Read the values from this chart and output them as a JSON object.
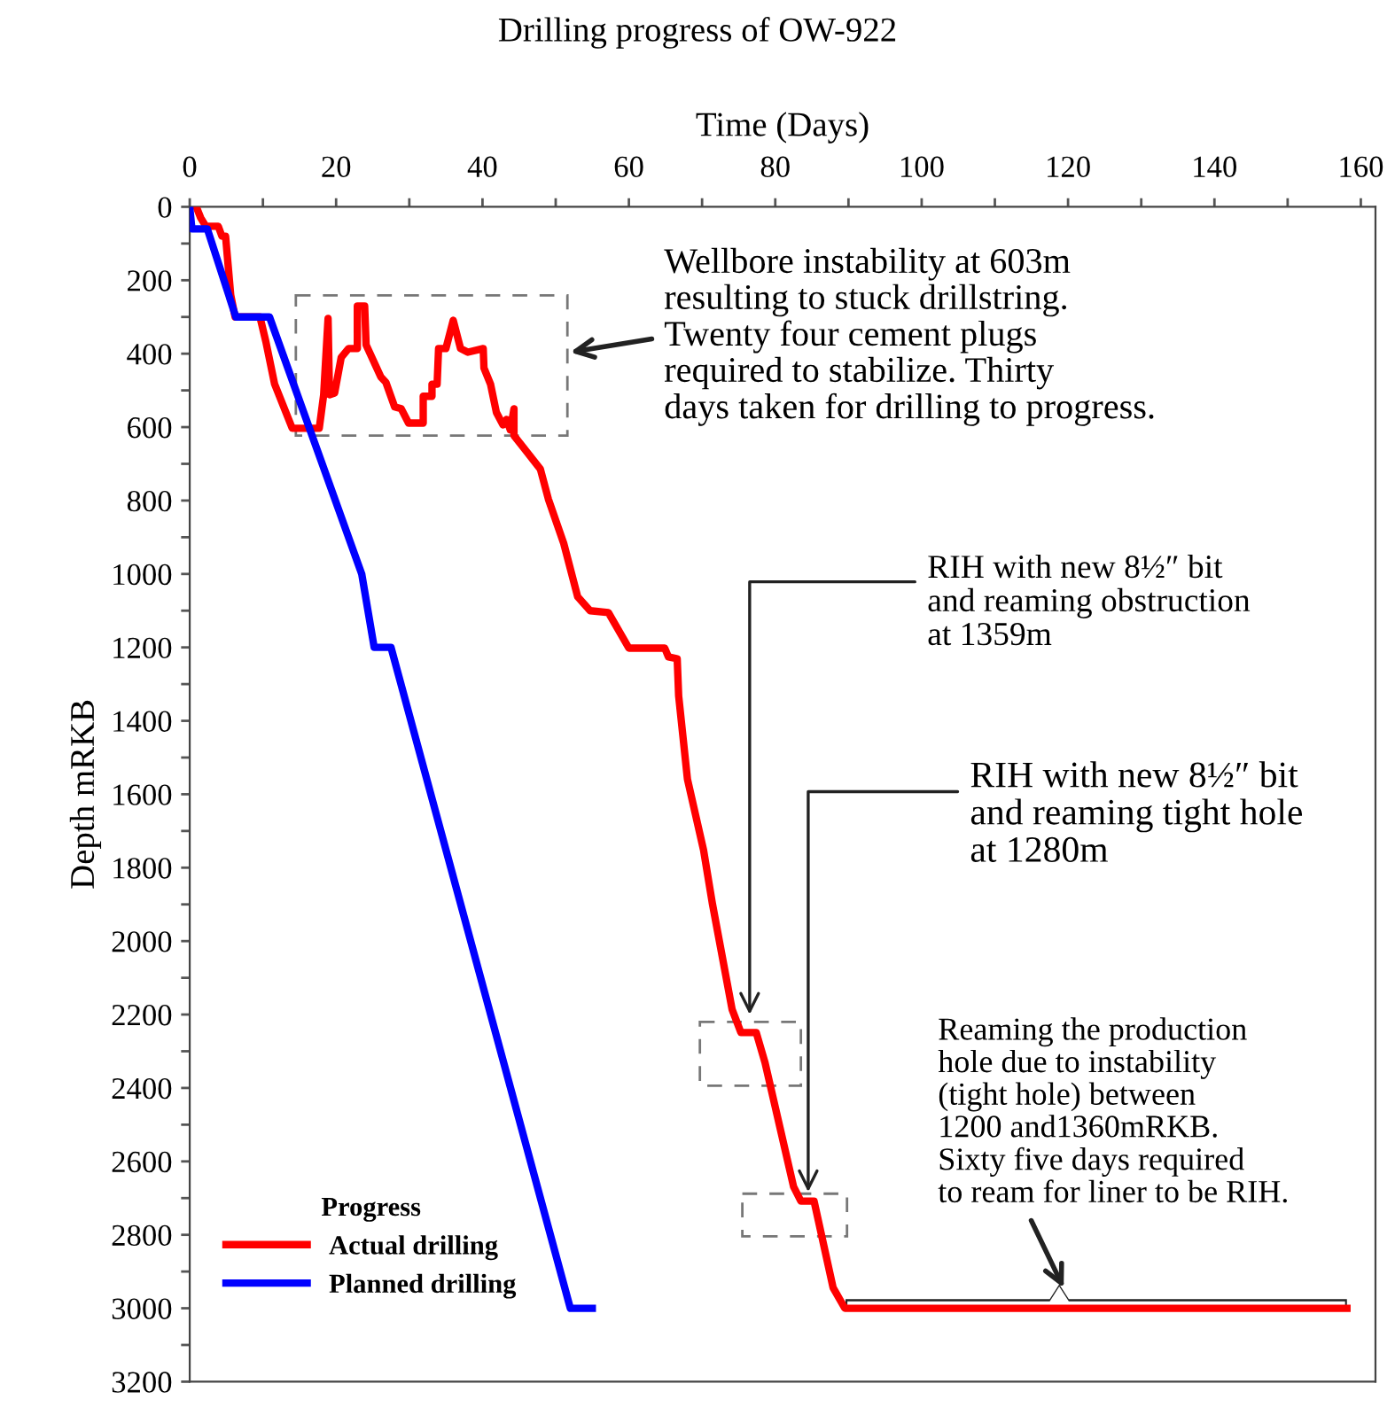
{
  "chart_data": {
    "type": "line",
    "title": "Drilling progress of OW-922",
    "xlabel": "Time (Days)",
    "ylabel": "Depth mRKB",
    "legend_title": "Progress",
    "legend": "bottom left",
    "grid": false,
    "line_style": "solid",
    "marker": "none",
    "xlim": [
      0,
      162
    ],
    "ylim": [
      3200,
      0
    ],
    "xticks": [
      0,
      {
        "value": 10,
        "label": null
      },
      20,
      {
        "value": 30,
        "label": null
      },
      40,
      {
        "value": 50,
        "label": null
      },
      60,
      {
        "value": 70,
        "label": null
      },
      80,
      {
        "value": 90,
        "label": null
      },
      100,
      {
        "value": 110,
        "label": null
      },
      120,
      {
        "value": 130,
        "label": null
      },
      140,
      {
        "value": 150,
        "label": null
      },
      160
    ],
    "yticks": [
      0,
      {
        "value": 100,
        "label": null
      },
      200,
      {
        "value": 300,
        "label": null
      },
      400,
      {
        "value": 500,
        "label": null
      },
      600,
      {
        "value": 700,
        "label": null
      },
      800,
      {
        "value": 900,
        "label": null
      },
      1000,
      {
        "value": 1100,
        "label": null
      },
      1200,
      {
        "value": 1300,
        "label": null
      },
      1400,
      {
        "value": 1500,
        "label": null
      },
      1600,
      {
        "value": 1700,
        "label": null
      },
      1800,
      {
        "value": 1900,
        "label": null
      },
      2000,
      {
        "value": 2100,
        "label": null
      },
      2200,
      {
        "value": 2300,
        "label": null
      },
      2400,
      {
        "value": 2500,
        "label": null
      },
      2600,
      {
        "value": 2700,
        "label": null
      },
      2800,
      {
        "value": 2900,
        "label": null
      },
      3000,
      {
        "value": 3100,
        "label": null
      },
      3200
    ],
    "series": [
      {
        "name": "Actual drilling",
        "color": "#ff0000",
        "x": [
          0.9,
          1.5,
          2.2,
          3.9,
          4.4,
          4.9,
          5.6,
          6.2,
          9.6,
          10.4,
          11.6,
          14.0,
          17.7,
          18.3,
          18.9,
          19.1,
          19.8,
          20.7,
          21.7,
          22.9,
          22.9,
          23.9,
          24.1,
          26.1,
          26.8,
          28.0,
          28.9,
          29.9,
          31.9,
          31.9,
          33.1,
          33.1,
          33.8,
          34.0,
          35.0,
          36.0,
          37.0,
          38.0,
          40.1,
          40.2,
          41.1,
          41.9,
          42.8,
          43.3,
          43.8,
          44.3,
          44.3,
          47.9,
          49.0,
          51.1,
          53.0,
          54.7,
          57.2,
          60.0,
          64.9,
          65.4,
          66.6,
          66.8,
          68.0,
          70.2,
          71.4,
          74.1,
          75.3,
          77.4,
          78.6,
          82.5,
          83.5,
          85.3,
          87.9,
          89.5,
          158.1
        ],
        "values": [
          0,
          30,
          53,
          53,
          80,
          80,
          240,
          300,
          300,
          367,
          483,
          603,
          603,
          512,
          304,
          512,
          507,
          410,
          386,
          386,
          270,
          270,
          376,
          463,
          478,
          545,
          550,
          589,
          589,
          516,
          516,
          483,
          483,
          386,
          386,
          309,
          386,
          396,
          386,
          439,
          483,
          560,
          594,
          579,
          608,
          550,
          623,
          714,
          796,
          917,
          1062,
          1100,
          1105,
          1202,
          1202,
          1226,
          1231,
          1332,
          1559,
          1752,
          1897,
          2186,
          2249,
          2249,
          2331,
          2669,
          2708,
          2708,
          2944,
          3000,
          3000
        ]
      },
      {
        "name": "Planned drilling",
        "color": "#0000ff",
        "x": [
          0,
          0.3,
          2.4,
          6.3,
          10.9,
          23.5,
          25.2,
          27.5,
          52,
          55
        ],
        "values": [
          0,
          60,
          60,
          300,
          300,
          1000,
          1200,
          1200,
          3000,
          3000
        ]
      }
    ],
    "annotations": [
      "Wellbore instability at 603m\nresulting to stuck drillstring.\nTwenty four cement plugs\nrequired to stabilize. Thirty\ndays taken for drilling to progress.",
      "RIH with new 8½″ bit\nand reaming obstruction\nat 1359m",
      "RIH with new 8½″ bit\nand reaming tight hole\nat 1280m",
      "Reaming the production\nhole due to instability\n(tight hole) between\n1200 and1360mRKB.\nSixty five days required\nto ream for liner to be RIH."
    ]
  }
}
